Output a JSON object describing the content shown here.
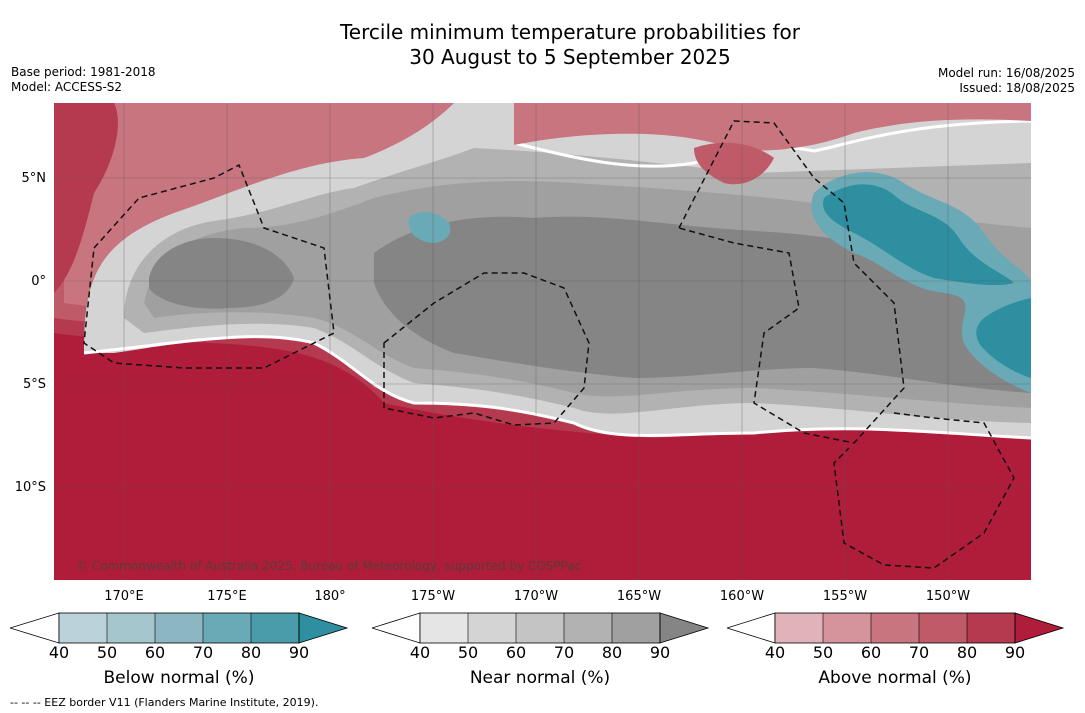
{
  "title": {
    "line1": "Tercile minimum temperature probabilities for",
    "line2": "30 August to 5 September 2025"
  },
  "meta": {
    "base_period": "Base period: 1981-2018",
    "model": "Model: ACCESS-S2",
    "model_run": "Model run: 16/08/2025",
    "issued": "Issued: 18/08/2025"
  },
  "map": {
    "copyright": "© Commonwealth of Australia 2025, Bureau of Meteorology, supported by COSPPac",
    "lat_labels": [
      "5°N",
      "0°",
      "5°S",
      "10°S"
    ],
    "lon_labels": [
      "170°E",
      "175°E",
      "180°",
      "175°W",
      "170°W",
      "165°W",
      "160°W",
      "155°W",
      "150°W"
    ],
    "colors": {
      "below": [
        "#bcd2da",
        "#a5c6cd",
        "#8ab7c1",
        "#6aaab6",
        "#4a9cab",
        "#2e8fa1"
      ],
      "near": [
        "#e5e5e5",
        "#d4d4d4",
        "#c4c4c4",
        "#b2b2b2",
        "#a0a0a0",
        "#858585"
      ],
      "above": [
        "#e0b3ba",
        "#d5939c",
        "#c87580",
        "#bf5b68",
        "#b63a4f",
        "#b01d3a"
      ]
    }
  },
  "colorbars": [
    {
      "label": "Below normal (%)",
      "ticks": [
        "40",
        "50",
        "60",
        "70",
        "80",
        "90"
      ]
    },
    {
      "label": "Near normal (%)",
      "ticks": [
        "40",
        "50",
        "60",
        "70",
        "80",
        "90"
      ]
    },
    {
      "label": "Above normal (%)",
      "ticks": [
        "40",
        "50",
        "60",
        "70",
        "80",
        "90"
      ]
    }
  ],
  "footnote": "--  --  -- EEZ border V11 (Flanders Marine Institute, 2019)."
}
